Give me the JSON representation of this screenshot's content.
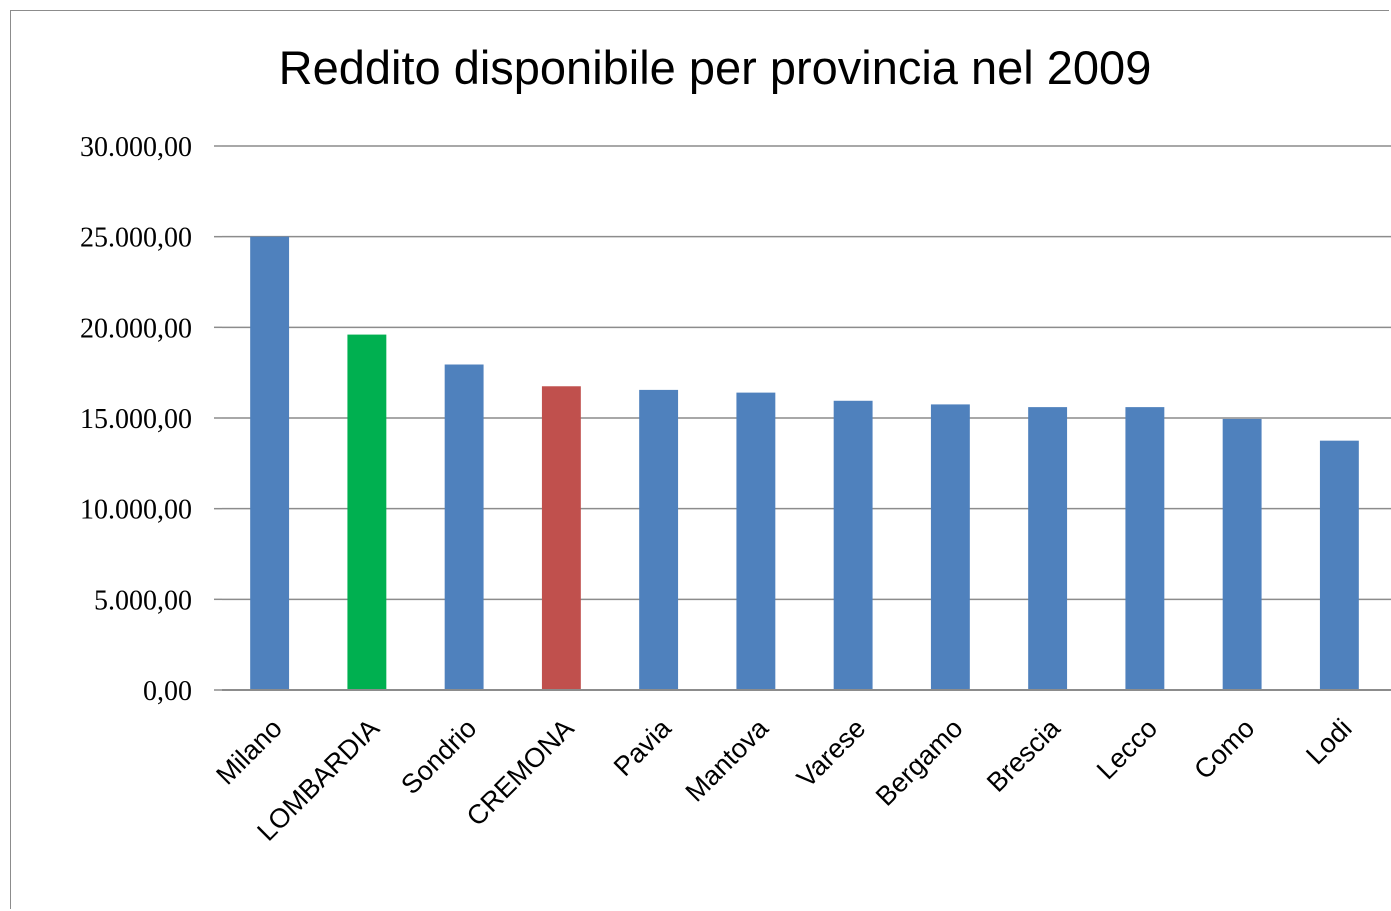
{
  "chart_data": {
    "type": "bar",
    "title": "Reddito disponibile per provincia nel 2009",
    "xlabel": "",
    "ylabel": "",
    "categories": [
      "Milano",
      "LOMBARDIA",
      "Sondrio",
      "CREMONA",
      "Pavia",
      "Mantova",
      "Varese",
      "Bergamo",
      "Brescia",
      "Lecco",
      "Como",
      "Lodi"
    ],
    "values": [
      25000,
      19600,
      17950,
      16750,
      16550,
      16400,
      15950,
      15750,
      15600,
      15600,
      14950,
      13750
    ],
    "bar_colors": [
      "#4f81bd",
      "#00b050",
      "#4f81bd",
      "#c0504d",
      "#4f81bd",
      "#4f81bd",
      "#4f81bd",
      "#4f81bd",
      "#4f81bd",
      "#4f81bd",
      "#4f81bd",
      "#4f81bd"
    ],
    "ylim": [
      0,
      30000
    ],
    "yticks": [
      0,
      5000,
      10000,
      15000,
      20000,
      25000,
      30000
    ],
    "ytick_labels": [
      "0,00",
      "5.000,00",
      "10.000,00",
      "15.000,00",
      "20.000,00",
      "25.000,00",
      "30.000,00"
    ],
    "grid": true,
    "legend": "none"
  }
}
